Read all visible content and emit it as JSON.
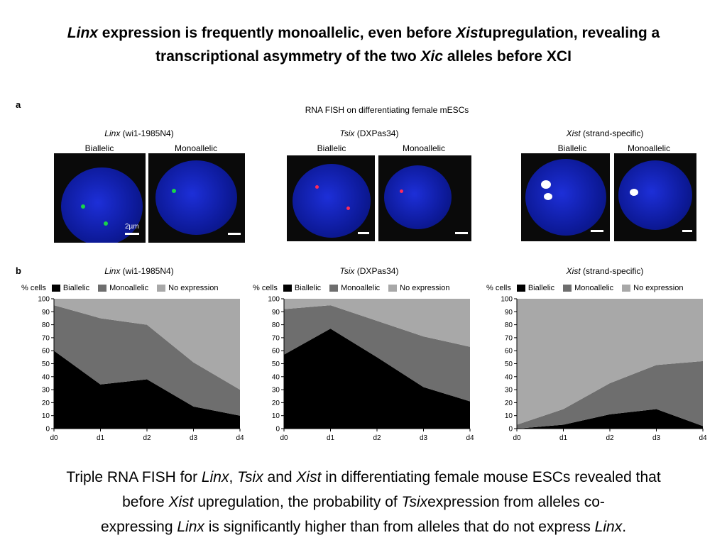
{
  "title": {
    "line1_em1": "Linx",
    "line1_a": " expression is frequently monoallelic, even before ",
    "line1_em2": "Xist",
    "line1_b": "upregulation, revealing a",
    "line2_a": "transcriptional asymmetry of the two ",
    "line2_em": "Xic",
    "line2_b": " alleles before XCI"
  },
  "panel_a": {
    "letter": "a",
    "heading": "RNA FISH on differentiating female mESCs",
    "groups": [
      {
        "name_em": "Linx",
        "name_rest": " (wi1-1985N4)",
        "left": "Biallelic",
        "right": "Monoallelic",
        "scale": "2µm",
        "spot": "#19d34a"
      },
      {
        "name_em": "Tsix",
        "name_rest": " (DXPas34)",
        "left": "Biallelic",
        "right": "Monoallelic",
        "scale": "",
        "spot": "#ff2a5a"
      },
      {
        "name_em": "Xist",
        "name_rest": " (strand-specific)",
        "left": "Biallelic",
        "right": "Monoallelic",
        "scale": "",
        "spot": "#ffffff"
      }
    ]
  },
  "panel_b": {
    "letter": "b",
    "ylabel": "% cells",
    "legend": [
      "Biallelic",
      "Monoallelic",
      "No expression"
    ],
    "colors": {
      "biallelic": "#000000",
      "monoallelic": "#6e6e6e",
      "none": "#a8a8a8"
    }
  },
  "chart_data": [
    {
      "type": "area",
      "title_em": "Linx",
      "title_rest": " (wi1-1985N4)",
      "stacked": true,
      "categories": [
        "d0",
        "d1",
        "d2",
        "d3",
        "d4"
      ],
      "ylim": [
        0,
        100
      ],
      "yticks": [
        0,
        10,
        20,
        30,
        40,
        50,
        60,
        70,
        80,
        90,
        100
      ],
      "series": [
        {
          "name": "Biallelic",
          "values": [
            60,
            34,
            38,
            17,
            10
          ]
        },
        {
          "name": "Monoallelic",
          "values": [
            35,
            51,
            42,
            34,
            20
          ]
        },
        {
          "name": "No expression",
          "values": [
            5,
            15,
            20,
            49,
            70
          ]
        }
      ]
    },
    {
      "type": "area",
      "title_em": "Tsix",
      "title_rest": " (DXPas34)",
      "stacked": true,
      "categories": [
        "d0",
        "d1",
        "d2",
        "d3",
        "d4"
      ],
      "ylim": [
        0,
        100
      ],
      "yticks": [
        0,
        10,
        20,
        30,
        40,
        50,
        60,
        70,
        80,
        90,
        100
      ],
      "series": [
        {
          "name": "Biallelic",
          "values": [
            57,
            77,
            55,
            32,
            21
          ]
        },
        {
          "name": "Monoallelic",
          "values": [
            35,
            18,
            28,
            39,
            42
          ]
        },
        {
          "name": "No expression",
          "values": [
            8,
            5,
            17,
            29,
            37
          ]
        }
      ]
    },
    {
      "type": "area",
      "title_em": "Xist",
      "title_rest": " (strand-specific)",
      "stacked": true,
      "categories": [
        "d0",
        "d1",
        "d2",
        "d3",
        "d4"
      ],
      "ylim": [
        0,
        100
      ],
      "yticks": [
        0,
        10,
        20,
        30,
        40,
        50,
        60,
        70,
        80,
        90,
        100
      ],
      "series": [
        {
          "name": "Biallelic",
          "values": [
            0,
            3,
            11,
            15,
            2
          ]
        },
        {
          "name": "Monoallelic",
          "values": [
            3,
            12,
            24,
            34,
            50
          ]
        },
        {
          "name": "No expression",
          "values": [
            97,
            85,
            65,
            51,
            48
          ]
        }
      ]
    }
  ],
  "caption": {
    "l1_a": "Triple RNA FISH for ",
    "l1_em1": "Linx",
    "l1_b": ", ",
    "l1_em2": "Tsix",
    "l1_c": " and ",
    "l1_em3": "Xist",
    "l1_d": " in differentiating female mouse ESCs revealed that",
    "l2_a": "before ",
    "l2_em1": "Xist",
    "l2_b": " upregulation, the probability of ",
    "l2_em2": "Tsix",
    "l2_c": "expression from alleles co-",
    "l3_a": "expressing ",
    "l3_em1": "Linx",
    "l3_b": " is significantly higher than from alleles that do not express ",
    "l3_em2": "Linx",
    "l3_c": "."
  }
}
